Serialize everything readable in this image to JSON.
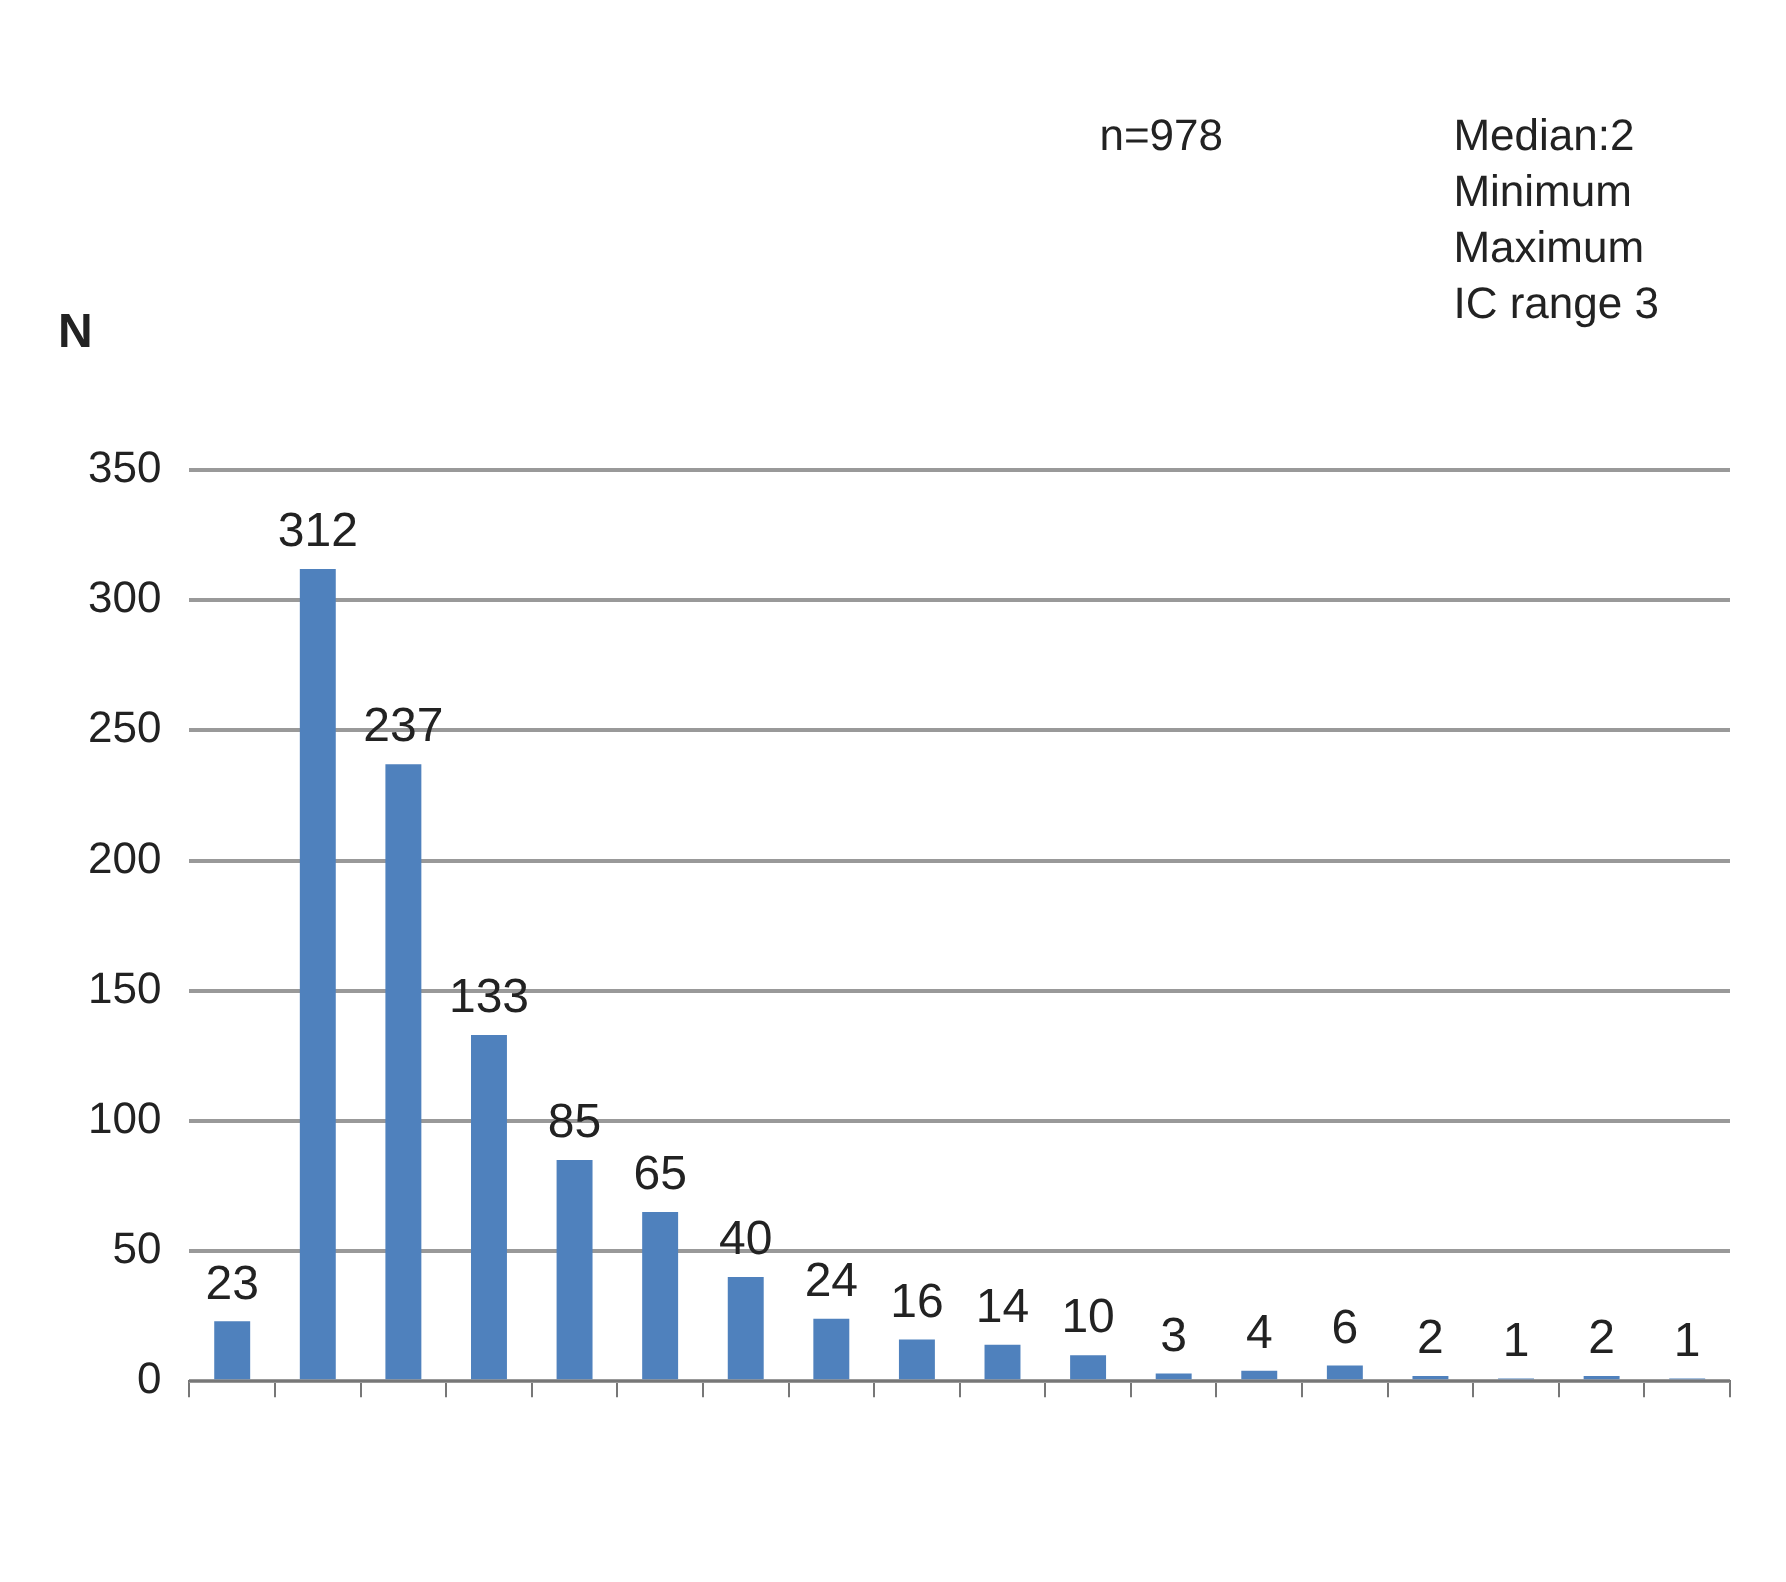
{
  "chart_data": {
    "type": "bar",
    "ylabel": "N",
    "categories": [
      null,
      null,
      null,
      null,
      null,
      null,
      null,
      null,
      null,
      null,
      null,
      null,
      null,
      null,
      null,
      null,
      null,
      null
    ],
    "values": [
      23,
      312,
      237,
      133,
      85,
      65,
      40,
      24,
      16,
      14,
      10,
      3,
      4,
      6,
      2,
      1,
      2,
      1
    ],
    "color": "#4f81bd",
    "ylim": [
      0,
      350
    ],
    "yticks": [
      0,
      50,
      100,
      150,
      200,
      250,
      300,
      350
    ],
    "grid": "y",
    "legend": false,
    "data_labels": true,
    "annotations": [
      "n=978",
      "Median:2",
      "Minimum",
      "Maximum",
      "IC range 3"
    ]
  }
}
